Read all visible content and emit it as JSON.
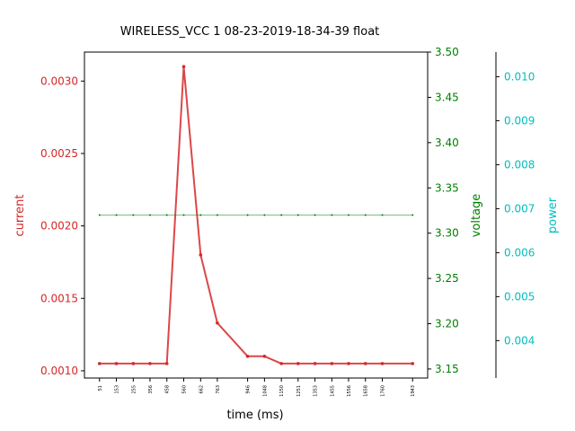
{
  "chart_data": {
    "type": "line",
    "title": "WIRELESS_VCC   1   08-23-2019-18-34-39   float",
    "xlabel": "time (ms)",
    "x": [
      51,
      153,
      255,
      356,
      458,
      560,
      662,
      763,
      946,
      1048,
      1150,
      1251,
      1353,
      1455,
      1556,
      1658,
      1760,
      1943
    ],
    "x_tick_labels": [
      "51",
      "153",
      "255",
      "356",
      "458",
      "560",
      "662",
      "763",
      "946",
      "1048",
      "1150",
      "1251",
      "1353",
      "1455",
      "1556",
      "1658",
      "1760",
      "1943"
    ],
    "xlim": [
      -40,
      2034
    ],
    "series": [
      {
        "name": "current",
        "axis": "left",
        "color": "#d62728",
        "values": [
          0.00105,
          0.00105,
          0.00105,
          0.00105,
          0.00105,
          0.0031,
          0.0018,
          0.00133,
          0.0011,
          0.0011,
          0.00105,
          0.00105,
          0.00105,
          0.00105,
          0.00105,
          0.00105,
          0.00105,
          0.00105
        ]
      },
      {
        "name": "voltage",
        "axis": "right",
        "color": "#008000",
        "values": [
          3.32,
          3.32,
          3.32,
          3.32,
          3.32,
          3.32,
          3.32,
          3.32,
          3.32,
          3.32,
          3.32,
          3.32,
          3.32,
          3.32,
          3.32,
          3.32,
          3.32,
          3.32
        ]
      },
      {
        "name": "power",
        "axis": "right-offset",
        "color": "#00bfbf",
        "values": [
          0.00348,
          0.00348,
          0.00348,
          0.00348,
          0.00348,
          0.01029,
          0.00598,
          0.00442,
          0.00365,
          0.00365,
          0.00348,
          0.00348,
          0.00348,
          0.00348,
          0.00348,
          0.00348,
          0.00348,
          0.00348
        ]
      }
    ],
    "axes": {
      "left": {
        "label": "current",
        "color": "#d62728",
        "ylim": [
          0.00095,
          0.0032
        ],
        "ticks": [
          0.001,
          0.0015,
          0.002,
          0.0025,
          0.003
        ],
        "tick_labels": [
          "0.0010",
          "0.0015",
          "0.0020",
          "0.0025",
          "0.0030"
        ]
      },
      "right": {
        "label": "voltage",
        "color": "#008000",
        "ylim": [
          3.14,
          3.5
        ],
        "ticks": [
          3.15,
          3.2,
          3.25,
          3.3,
          3.35,
          3.4,
          3.45,
          3.5
        ],
        "tick_labels": [
          "3.15",
          "3.20",
          "3.25",
          "3.30",
          "3.35",
          "3.40",
          "3.45",
          "3.50"
        ]
      },
      "right_offset": {
        "label": "power",
        "color": "#00bfbf",
        "ylim": [
          0.00315,
          0.01056
        ],
        "ticks": [
          0.004,
          0.005,
          0.006,
          0.007,
          0.008,
          0.009,
          0.01
        ],
        "tick_labels": [
          "0.004",
          "0.005",
          "0.006",
          "0.007",
          "0.008",
          "0.009",
          "0.010"
        ]
      }
    },
    "grid": false
  }
}
